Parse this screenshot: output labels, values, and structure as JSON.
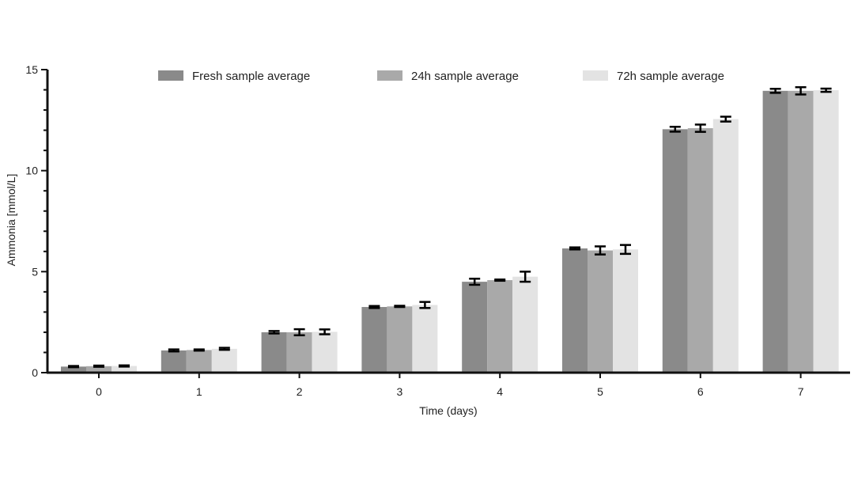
{
  "chart_data": {
    "type": "bar",
    "xlabel": "Time (days)",
    "ylabel": "Ammonia [mmol/L]",
    "categories": [
      "0",
      "1",
      "2",
      "3",
      "4",
      "5",
      "6",
      "7"
    ],
    "ylim": [
      0,
      15
    ],
    "yticks": [
      "0",
      "5",
      "10",
      "15"
    ],
    "legend_position": "top",
    "grid": false,
    "error_bars": true,
    "series": [
      {
        "name": "Fresh sample average",
        "color": "#8a8a8a",
        "values": [
          0.3,
          1.1,
          2.0,
          3.25,
          4.5,
          6.15,
          12.05,
          13.95
        ],
        "errors": [
          0.03,
          0.05,
          0.06,
          0.05,
          0.15,
          0.05,
          0.12,
          0.1
        ]
      },
      {
        "name": "24h sample average",
        "color": "#a9a9a9",
        "values": [
          0.32,
          1.12,
          2.0,
          3.28,
          4.58,
          6.05,
          12.1,
          13.95
        ],
        "errors": [
          0.03,
          0.03,
          0.15,
          0.03,
          0.03,
          0.2,
          0.18,
          0.18
        ]
      },
      {
        "name": "72h sample average",
        "color": "#e3e3e3",
        "values": [
          0.33,
          1.18,
          2.02,
          3.35,
          4.75,
          6.1,
          12.55,
          13.98
        ],
        "errors": [
          0.03,
          0.05,
          0.12,
          0.15,
          0.25,
          0.22,
          0.12,
          0.08
        ]
      }
    ]
  }
}
